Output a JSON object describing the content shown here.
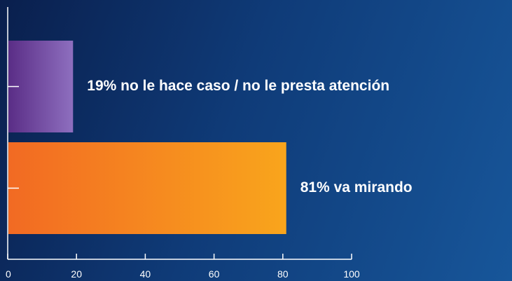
{
  "chart_data": {
    "type": "bar",
    "orientation": "horizontal",
    "categories": [
      "no le hace caso / no le presta atención",
      "va mirando"
    ],
    "values": [
      19,
      81
    ],
    "data_labels": [
      "19% no le hace caso / no le presta atención",
      "81% va mirando"
    ],
    "xlim": [
      0,
      100
    ],
    "xticks": [
      "0",
      "20",
      "40",
      "60",
      "80",
      "100"
    ],
    "grid": false,
    "colors": {
      "bar_1": [
        "#5a2d86",
        "#8e6fbf"
      ],
      "bar_2": [
        "#f26a23",
        "#f9a51c"
      ],
      "axis": "#ffffff",
      "text": "#ffffff"
    }
  }
}
